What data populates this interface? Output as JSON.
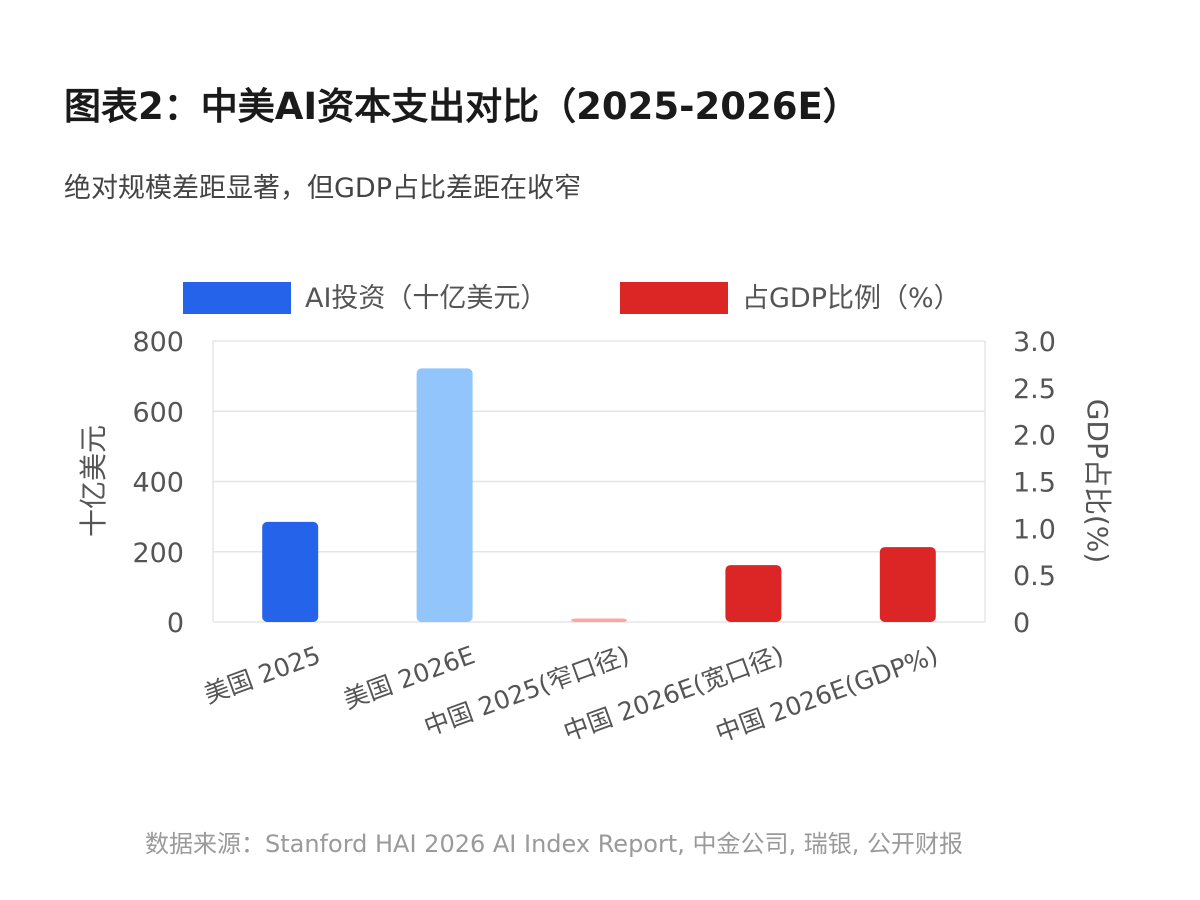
{
  "title": "图表2：中美AI资本支出对比（2025-2026E）",
  "subtitle": "绝对规模差距显著，但GDP占比差距在收窄",
  "source": "数据来源：Stanford HAI 2026 AI Index Report, 中金公司, 瑞银, 公开财报",
  "colors": {
    "blue": "#2563eb",
    "light_blue": "#93c5fd",
    "pale_red": "#fca5a5",
    "red": "#dc2626",
    "grid": "#e5e5e5",
    "axis_text": "#555555"
  },
  "chart_data": {
    "type": "bar",
    "categories": [
      "美国 2025",
      "美国 2026E",
      "中国 2025(窄口径)",
      "中国 2026E(宽口径)",
      "中国 2026E(GDP%)"
    ],
    "series": [
      {
        "name": "AI投资（十亿美元）",
        "axis": "left",
        "color": "#2563eb",
        "values": [
          285,
          722,
          10,
          162,
          null
        ],
        "bar_colors": [
          "#2563eb",
          "#93c5fd",
          "#fca5a5",
          "#dc2626",
          null
        ]
      },
      {
        "name": "占GDP比例（%）",
        "axis": "right",
        "color": "#dc2626",
        "values": [
          null,
          null,
          null,
          null,
          0.8
        ],
        "bar_colors": [
          null,
          null,
          null,
          null,
          "#dc2626"
        ]
      }
    ],
    "ylabel": "十亿美元",
    "y2label": "GDP占比(%)",
    "ylim": [
      0,
      800
    ],
    "y2lim": [
      0,
      3.0
    ],
    "yticks": [
      "0",
      "200",
      "400",
      "600",
      "800"
    ],
    "y2ticks": [
      "0",
      "0.5",
      "1.0",
      "1.5",
      "2.0",
      "2.5",
      "3.0"
    ],
    "legend": "top",
    "grid": true
  }
}
